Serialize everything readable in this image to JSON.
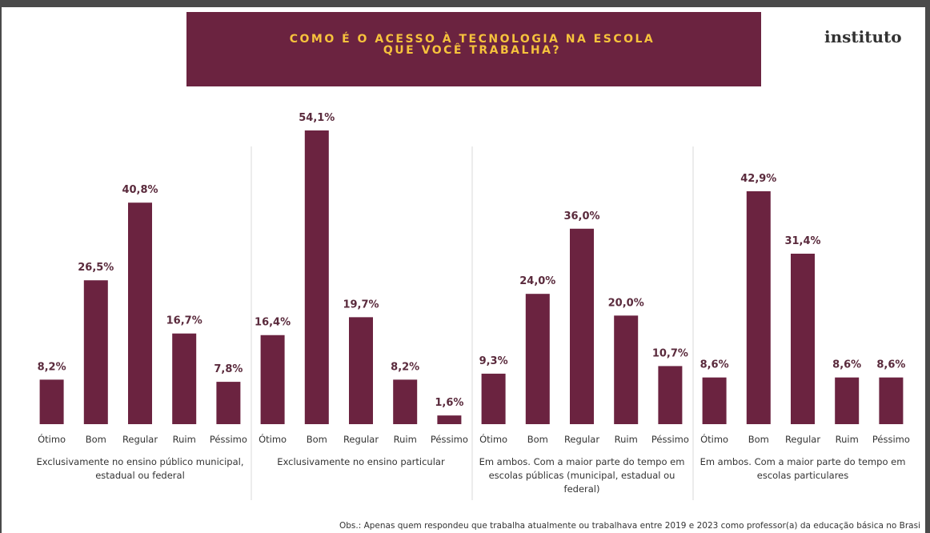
{
  "logo": "instituto",
  "chart_data": {
    "type": "bar",
    "title": "COMO É O ACESSO À TECNOLOGIA NA ESCOLA QUE VOCÊ TRABALHA?",
    "color": "#6b2340",
    "groups": [
      {
        "name": "Exclusivamente no ensino público municipal, estadual ou federal",
        "categories": [
          "Ótimo",
          "Bom",
          "Regular",
          "Ruim",
          "Péssimo"
        ],
        "values": [
          8.2,
          26.5,
          40.8,
          16.7,
          7.8
        ],
        "value_labels": [
          "8,2%",
          "26,5%",
          "40,8%",
          "16,7%",
          "7,8%"
        ]
      },
      {
        "name": "Exclusivamente no ensino particular",
        "categories": [
          "Ótimo",
          "Bom",
          "Regular",
          "Ruim",
          "Péssimo"
        ],
        "values": [
          16.4,
          54.1,
          19.7,
          8.2,
          1.6
        ],
        "value_labels": [
          "16,4%",
          "54,1%",
          "19,7%",
          "8,2%",
          "1,6%"
        ]
      },
      {
        "name": "Em ambos. Com a maior parte do tempo em escolas públicas (municipal, estadual ou federal)",
        "categories": [
          "Ótimo",
          "Bom",
          "Regular",
          "Ruim",
          "Péssimo"
        ],
        "values": [
          9.3,
          24.0,
          36.0,
          20.0,
          10.7
        ],
        "value_labels": [
          "9,3%",
          "24,0%",
          "36,0%",
          "20,0%",
          "10,7%"
        ]
      },
      {
        "name": "Em ambos. Com a maior parte do tempo em escolas particulares",
        "categories": [
          "Ótimo",
          "Bom",
          "Regular",
          "Ruim",
          "Péssimo"
        ],
        "values": [
          8.6,
          42.9,
          31.4,
          8.6,
          8.6
        ],
        "value_labels": [
          "8,6%",
          "42,9%",
          "31,4%",
          "8,6%",
          "8,6%"
        ]
      }
    ],
    "note": "Obs.: Apenas quem respondeu que trabalha atualmente ou trabalhava entre 2019 e 2023 como professor(a) da educação básica no Brasi"
  }
}
